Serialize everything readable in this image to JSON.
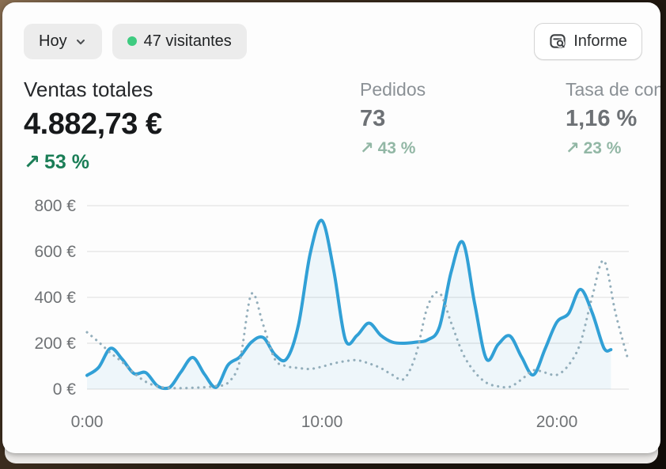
{
  "header": {
    "date_range_label": "Hoy",
    "visitors_badge": "47 visitantes",
    "report_button_label": "Informe"
  },
  "metrics": {
    "primary": {
      "label": "Ventas totales",
      "value": "4.882,73 €",
      "delta_arrow": "↗",
      "delta": "53 %"
    },
    "secondary": [
      {
        "label": "Pedidos",
        "value": "73",
        "delta_arrow": "↗",
        "delta": "43 %"
      },
      {
        "label": "Tasa de conversión",
        "value": "1,16 %",
        "delta_arrow": "↗",
        "delta": "23 %"
      }
    ]
  },
  "colors": {
    "accent_blue": "#31a0d6",
    "comparison_blue_gray": "#93aebb",
    "area_fill": "rgba(49,160,214,0.07)",
    "grid": "#e8e8e8",
    "axis_text": "#6f7275",
    "positive_green": "#1b7e57",
    "muted_green": "#92b7a5",
    "live_dot_green": "#3ecb80",
    "pill_bg": "#ececec"
  },
  "chart_data": {
    "type": "line",
    "x_axis": {
      "range": [
        0,
        23
      ],
      "ticks": [
        {
          "value": 0,
          "label": "0:00"
        },
        {
          "value": 10,
          "label": "10:00"
        },
        {
          "value": 20,
          "label": "20:00"
        }
      ]
    },
    "y_axis": {
      "range": [
        0,
        800
      ],
      "ticks": [
        {
          "value": 0,
          "label": "0 €"
        },
        {
          "value": 200,
          "label": "200 €"
        },
        {
          "value": 400,
          "label": "400 €"
        },
        {
          "value": 600,
          "label": "600 €"
        },
        {
          "value": 800,
          "label": "800 €"
        }
      ]
    },
    "legend": "none",
    "grid": "horizontal",
    "series": [
      {
        "name": "ventas-hoy",
        "style": "solid",
        "color": "#31a0d6",
        "area_fill": "rgba(49,160,214,0.07)",
        "points": [
          [
            0,
            60
          ],
          [
            0.5,
            95
          ],
          [
            1,
            178
          ],
          [
            1.5,
            130
          ],
          [
            2,
            68
          ],
          [
            2.5,
            72
          ],
          [
            3,
            14
          ],
          [
            3.5,
            6
          ],
          [
            4,
            75
          ],
          [
            4.5,
            138
          ],
          [
            5,
            65
          ],
          [
            5.5,
            8
          ],
          [
            6,
            105
          ],
          [
            6.5,
            140
          ],
          [
            7,
            205
          ],
          [
            7.5,
            225
          ],
          [
            8,
            150
          ],
          [
            8.5,
            132
          ],
          [
            9,
            280
          ],
          [
            9.5,
            590
          ],
          [
            10,
            735
          ],
          [
            10.5,
            520
          ],
          [
            11,
            215
          ],
          [
            11.5,
            235
          ],
          [
            12,
            288
          ],
          [
            12.5,
            235
          ],
          [
            13,
            205
          ],
          [
            13.5,
            200
          ],
          [
            14,
            205
          ],
          [
            14.5,
            215
          ],
          [
            15,
            270
          ],
          [
            15.5,
            510
          ],
          [
            16,
            640
          ],
          [
            16.5,
            375
          ],
          [
            17,
            132
          ],
          [
            17.5,
            195
          ],
          [
            18,
            232
          ],
          [
            18.5,
            140
          ],
          [
            19,
            62
          ],
          [
            19.5,
            175
          ],
          [
            20,
            292
          ],
          [
            20.5,
            330
          ],
          [
            21,
            435
          ],
          [
            21.5,
            335
          ],
          [
            22,
            180
          ],
          [
            22.3,
            172
          ]
        ]
      },
      {
        "name": "ventas-comparacion",
        "style": "dotted",
        "color": "#93aebb",
        "points": [
          [
            0,
            248
          ],
          [
            0.5,
            205
          ],
          [
            1,
            158
          ],
          [
            1.5,
            118
          ],
          [
            2,
            70
          ],
          [
            2.5,
            32
          ],
          [
            3,
            12
          ],
          [
            3.5,
            5
          ],
          [
            4,
            4
          ],
          [
            4.5,
            6
          ],
          [
            5,
            8
          ],
          [
            5.5,
            14
          ],
          [
            6,
            28
          ],
          [
            6.5,
            120
          ],
          [
            7,
            415
          ],
          [
            7.5,
            280
          ],
          [
            8,
            130
          ],
          [
            8.5,
            100
          ],
          [
            9,
            92
          ],
          [
            9.5,
            88
          ],
          [
            10,
            98
          ],
          [
            10.5,
            112
          ],
          [
            11,
            122
          ],
          [
            11.5,
            126
          ],
          [
            12,
            112
          ],
          [
            12.5,
            92
          ],
          [
            13,
            62
          ],
          [
            13.5,
            45
          ],
          [
            14,
            150
          ],
          [
            14.5,
            360
          ],
          [
            15,
            420
          ],
          [
            15.5,
            290
          ],
          [
            16,
            155
          ],
          [
            16.5,
            75
          ],
          [
            17,
            28
          ],
          [
            17.5,
            12
          ],
          [
            18,
            10
          ],
          [
            18.5,
            42
          ],
          [
            19,
            82
          ],
          [
            19.5,
            72
          ],
          [
            20,
            62
          ],
          [
            20.5,
            105
          ],
          [
            21,
            200
          ],
          [
            21.5,
            400
          ],
          [
            22,
            560
          ],
          [
            22.5,
            330
          ],
          [
            23,
            140
          ]
        ]
      }
    ]
  }
}
